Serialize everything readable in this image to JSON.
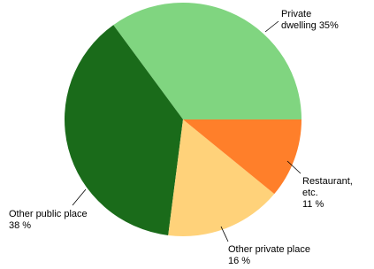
{
  "chart_data": {
    "type": "pie",
    "categories": [
      "Private dwelling",
      "Other public place",
      "Other private place",
      "Restaurant, etc."
    ],
    "values": [
      35,
      38,
      16,
      11
    ],
    "value_labels": [
      "35%",
      "38 %",
      "16 %",
      "11 %"
    ],
    "colors": [
      "#80d580",
      "#1a6b1a",
      "#ffd27a",
      "#ff7f2a"
    ]
  }
}
